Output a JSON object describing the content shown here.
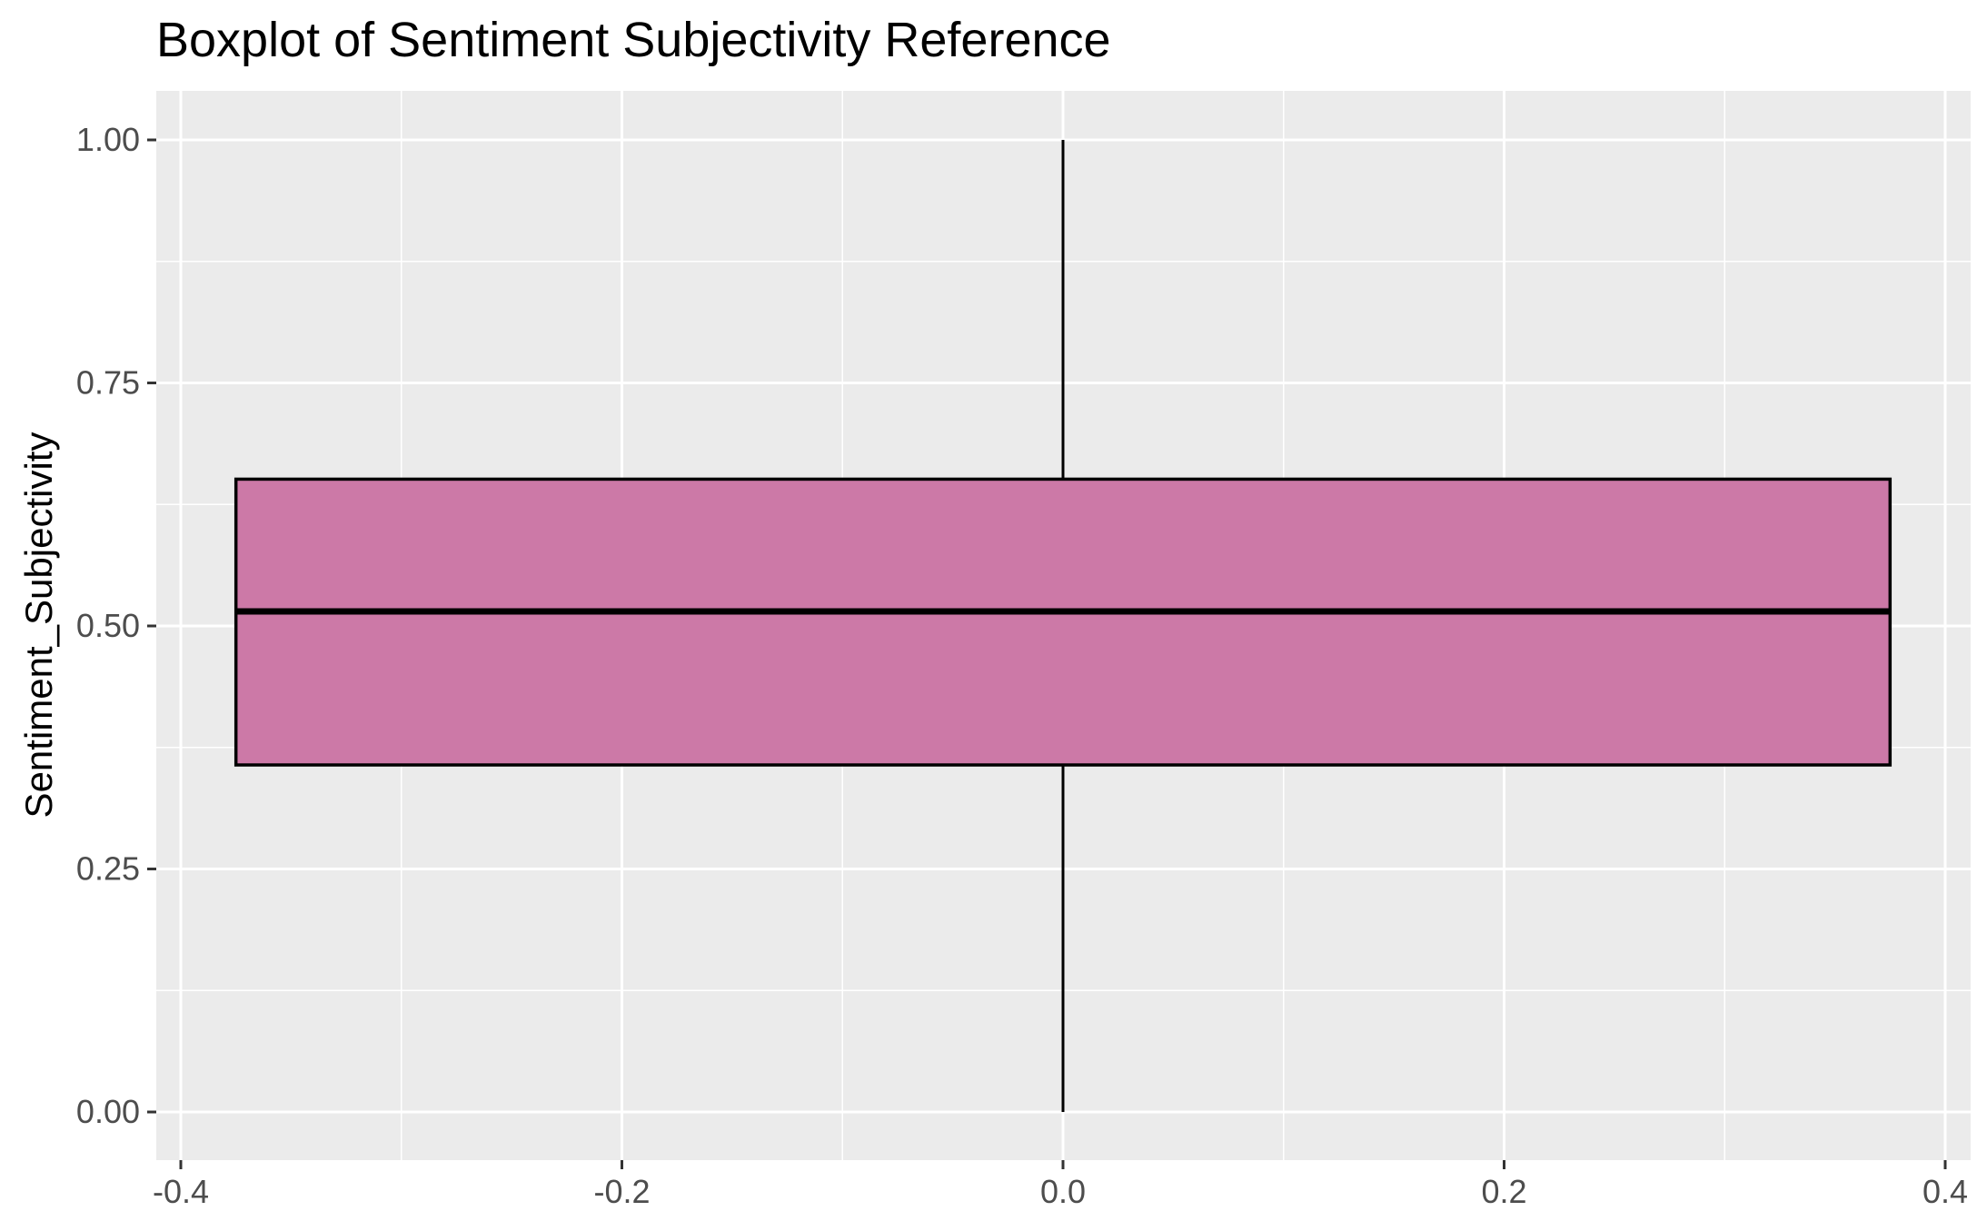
{
  "chart_data": {
    "type": "boxplot",
    "title": "Boxplot of Sentiment Subjectivity Reference",
    "xlabel": "",
    "ylabel": "Sentiment_Subjectivity",
    "xlim": [
      -0.4,
      0.4
    ],
    "ylim": [
      0.0,
      1.0
    ],
    "x_ticks": [
      -0.4,
      -0.2,
      0.0,
      0.2,
      0.4
    ],
    "x_tick_labels": [
      "-0.4",
      "-0.2",
      "0.0",
      "0.2",
      "0.4"
    ],
    "y_ticks": [
      0.0,
      0.25,
      0.5,
      0.75,
      1.0
    ],
    "y_tick_labels": [
      "0.00",
      "0.25",
      "0.50",
      "0.75",
      "1.00"
    ],
    "grid": true,
    "box": {
      "x_center": 0.0,
      "x_left": -0.375,
      "x_right": 0.375,
      "min": 0.0,
      "q1": 0.357,
      "median": 0.515,
      "q3": 0.651,
      "max": 1.0
    },
    "colors": {
      "panel_background": "#ebebeb",
      "grid_major": "#ffffff",
      "grid_minor": "#ffffff",
      "box_fill": "#cc79a7",
      "box_outline": "#000000",
      "tick_text": "#4d4d4d",
      "tick_mark": "#333333"
    }
  }
}
